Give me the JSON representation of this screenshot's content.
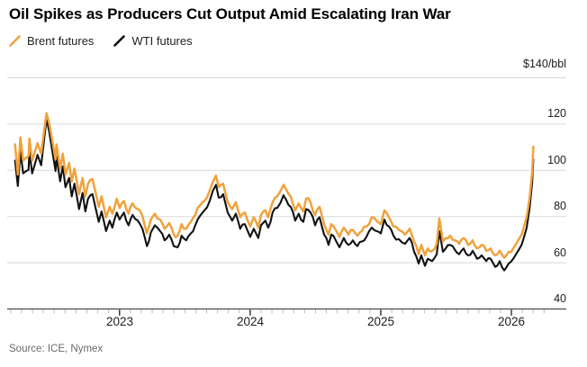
{
  "title": "Oil Spikes as Producers Cut Output Amid Escalating Iran War",
  "source": "Source: ICE, Nymex",
  "colors": {
    "brent": "#F0A23C",
    "wti": "#111111",
    "gridline": "#D9D9D9",
    "axis_line": "#4A4A4A",
    "minor_tick": "#B8B8B8",
    "major_tick": "#1A1A1A",
    "text": "#1C1C1C",
    "source_text": "#696969"
  },
  "chart_data": {
    "type": "line",
    "title": "Oil Spikes as Producers Cut Output Amid Escalating Iran War",
    "xlabel": "",
    "ylabel": "$/bbl",
    "grid": "horizontal",
    "legend_position": "top-left",
    "y_axis": {
      "unit_label": "$140/bbl",
      "range": [
        40,
        140
      ],
      "ticks": [
        120,
        100,
        80,
        60,
        40
      ],
      "tick_labels": [
        "120",
        "100",
        "80",
        "60",
        "40"
      ],
      "gridlines": [
        140,
        120,
        100,
        80,
        60,
        40
      ]
    },
    "x_axis": {
      "range": [
        2022.14,
        2026.42
      ],
      "tick_years": [
        2023,
        2024,
        2025,
        2026
      ],
      "tick_labels": [
        "2023",
        "2024",
        "2025",
        "2026"
      ],
      "minor_ticks_per_year": 12
    },
    "series": [
      {
        "name": "Brent futures",
        "color": "#F0A23C",
        "width": 2.5,
        "points": [
          [
            2022.2,
            111
          ],
          [
            2022.221,
            98
          ],
          [
            2022.241,
            114
          ],
          [
            2022.262,
            104
          ],
          [
            2022.303,
            106
          ],
          [
            2022.31,
            113.5
          ],
          [
            2022.331,
            104
          ],
          [
            2022.345,
            106.5
          ],
          [
            2022.372,
            111.5
          ],
          [
            2022.4,
            107
          ],
          [
            2022.441,
            124.5
          ],
          [
            2022.462,
            120
          ],
          [
            2022.51,
            104.5
          ],
          [
            2022.517,
            111
          ],
          [
            2022.545,
            100.5
          ],
          [
            2022.566,
            107
          ],
          [
            2022.586,
            98
          ],
          [
            2022.614,
            103
          ],
          [
            2022.634,
            95
          ],
          [
            2022.655,
            100.5
          ],
          [
            2022.69,
            89.5
          ],
          [
            2022.717,
            96.5
          ],
          [
            2022.738,
            88.5
          ],
          [
            2022.759,
            94
          ],
          [
            2022.793,
            96
          ],
          [
            2022.841,
            84
          ],
          [
            2022.862,
            88.5
          ],
          [
            2022.897,
            79.5
          ],
          [
            2022.924,
            84
          ],
          [
            2022.945,
            81
          ],
          [
            2022.979,
            87.5
          ],
          [
            2023.0,
            83.5
          ],
          [
            2023.034,
            86.5
          ],
          [
            2023.069,
            81
          ],
          [
            2023.1,
            85.5
          ],
          [
            2023.14,
            83
          ],
          [
            2023.175,
            80
          ],
          [
            2023.21,
            72.5
          ],
          [
            2023.24,
            78.5
          ],
          [
            2023.27,
            81
          ],
          [
            2023.31,
            78.5
          ],
          [
            2023.345,
            74.5
          ],
          [
            2023.38,
            77
          ],
          [
            2023.415,
            72
          ],
          [
            2023.445,
            71.5
          ],
          [
            2023.475,
            76.5
          ],
          [
            2023.51,
            74.5
          ],
          [
            2023.545,
            77.5
          ],
          [
            2023.58,
            80.5
          ],
          [
            2023.615,
            84.5
          ],
          [
            2023.65,
            86.5
          ],
          [
            2023.69,
            91
          ],
          [
            2023.738,
            97.5
          ],
          [
            2023.759,
            92.5
          ],
          [
            2023.793,
            94
          ],
          [
            2023.828,
            86
          ],
          [
            2023.862,
            83
          ],
          [
            2023.89,
            86
          ],
          [
            2023.924,
            79.5
          ],
          [
            2023.959,
            81.5
          ],
          [
            2024.0,
            75.5
          ],
          [
            2024.028,
            79.5
          ],
          [
            2024.062,
            75
          ],
          [
            2024.083,
            80.5
          ],
          [
            2024.117,
            82.5
          ],
          [
            2024.138,
            79.5
          ],
          [
            2024.172,
            86
          ],
          [
            2024.207,
            88.5
          ],
          [
            2024.255,
            93.5
          ],
          [
            2024.276,
            91.5
          ],
          [
            2024.31,
            88.5
          ],
          [
            2024.345,
            82.5
          ],
          [
            2024.372,
            85.5
          ],
          [
            2024.407,
            82
          ],
          [
            2024.428,
            87.5
          ],
          [
            2024.462,
            86
          ],
          [
            2024.497,
            80.5
          ],
          [
            2024.531,
            84
          ],
          [
            2024.566,
            76.5
          ],
          [
            2024.6,
            72
          ],
          [
            2024.621,
            76.5
          ],
          [
            2024.655,
            74
          ],
          [
            2024.683,
            71
          ],
          [
            2024.717,
            75
          ],
          [
            2024.752,
            72
          ],
          [
            2024.786,
            74
          ],
          [
            2024.821,
            71.5
          ],
          [
            2024.855,
            73.5
          ],
          [
            2024.89,
            75.5
          ],
          [
            2024.931,
            79.5
          ],
          [
            2024.966,
            78
          ],
          [
            2025.0,
            76.5
          ],
          [
            2025.028,
            82.5
          ],
          [
            2025.062,
            79.5
          ],
          [
            2025.097,
            75.5
          ],
          [
            2025.138,
            74
          ],
          [
            2025.186,
            72
          ],
          [
            2025.221,
            74.5
          ],
          [
            2025.255,
            69
          ],
          [
            2025.29,
            63.5
          ],
          [
            2025.31,
            67.5
          ],
          [
            2025.338,
            63
          ],
          [
            2025.359,
            66
          ],
          [
            2025.393,
            65
          ],
          [
            2025.428,
            68
          ],
          [
            2025.448,
            79
          ],
          [
            2025.476,
            69
          ],
          [
            2025.497,
            70.5
          ],
          [
            2025.531,
            71.5
          ],
          [
            2025.566,
            69.5
          ],
          [
            2025.6,
            68
          ],
          [
            2025.634,
            70.5
          ],
          [
            2025.669,
            67.5
          ],
          [
            2025.703,
            69.5
          ],
          [
            2025.738,
            66
          ],
          [
            2025.772,
            67.5
          ],
          [
            2025.807,
            65
          ],
          [
            2025.841,
            66
          ],
          [
            2025.876,
            63
          ],
          [
            2025.91,
            65
          ],
          [
            2025.945,
            62
          ],
          [
            2025.979,
            64.5
          ],
          [
            2026.014,
            66
          ],
          [
            2026.041,
            68.5
          ],
          [
            2026.062,
            70.5
          ],
          [
            2026.097,
            75.5
          ],
          [
            2026.117,
            79.5
          ],
          [
            2026.138,
            87.5
          ],
          [
            2026.159,
            99
          ],
          [
            2026.168,
            110
          ]
        ]
      },
      {
        "name": "WTI futures",
        "color": "#111111",
        "width": 2.1,
        "points": [
          [
            2022.2,
            104
          ],
          [
            2022.221,
            93
          ],
          [
            2022.241,
            108
          ],
          [
            2022.262,
            98.5
          ],
          [
            2022.303,
            100
          ],
          [
            2022.31,
            108
          ],
          [
            2022.331,
            98.5
          ],
          [
            2022.345,
            101
          ],
          [
            2022.372,
            106.5
          ],
          [
            2022.4,
            102
          ],
          [
            2022.441,
            122
          ],
          [
            2022.462,
            116.5
          ],
          [
            2022.51,
            99.5
          ],
          [
            2022.517,
            106
          ],
          [
            2022.545,
            95
          ],
          [
            2022.566,
            101.5
          ],
          [
            2022.586,
            92.5
          ],
          [
            2022.614,
            96.5
          ],
          [
            2022.634,
            88.5
          ],
          [
            2022.655,
            94
          ],
          [
            2022.69,
            83
          ],
          [
            2022.717,
            90
          ],
          [
            2022.738,
            82
          ],
          [
            2022.759,
            87.5
          ],
          [
            2022.793,
            89.5
          ],
          [
            2022.841,
            77.5
          ],
          [
            2022.862,
            82
          ],
          [
            2022.897,
            73.5
          ],
          [
            2022.924,
            78
          ],
          [
            2022.945,
            75
          ],
          [
            2022.979,
            81.5
          ],
          [
            2023.0,
            78.5
          ],
          [
            2023.034,
            81.5
          ],
          [
            2023.069,
            76
          ],
          [
            2023.1,
            80.5
          ],
          [
            2023.14,
            78
          ],
          [
            2023.175,
            74.5
          ],
          [
            2023.21,
            67
          ],
          [
            2023.24,
            73
          ],
          [
            2023.27,
            76
          ],
          [
            2023.31,
            73.5
          ],
          [
            2023.345,
            69.5
          ],
          [
            2023.38,
            72
          ],
          [
            2023.415,
            67
          ],
          [
            2023.445,
            66.5
          ],
          [
            2023.475,
            71.5
          ],
          [
            2023.51,
            69.5
          ],
          [
            2023.545,
            72.5
          ],
          [
            2023.58,
            76
          ],
          [
            2023.615,
            80
          ],
          [
            2023.65,
            82.5
          ],
          [
            2023.69,
            86.5
          ],
          [
            2023.738,
            93.5
          ],
          [
            2023.759,
            88
          ],
          [
            2023.793,
            89.5
          ],
          [
            2023.828,
            81.5
          ],
          [
            2023.862,
            78
          ],
          [
            2023.89,
            81
          ],
          [
            2023.924,
            74.5
          ],
          [
            2023.959,
            76.5
          ],
          [
            2024.0,
            71
          ],
          [
            2024.028,
            74.5
          ],
          [
            2024.062,
            70.5
          ],
          [
            2024.083,
            76
          ],
          [
            2024.117,
            78
          ],
          [
            2024.138,
            75
          ],
          [
            2024.172,
            81.5
          ],
          [
            2024.207,
            83.5
          ],
          [
            2024.255,
            89
          ],
          [
            2024.276,
            87
          ],
          [
            2024.31,
            84
          ],
          [
            2024.345,
            78
          ],
          [
            2024.372,
            81
          ],
          [
            2024.407,
            77.5
          ],
          [
            2024.428,
            83
          ],
          [
            2024.462,
            81.5
          ],
          [
            2024.497,
            76
          ],
          [
            2024.531,
            79.5
          ],
          [
            2024.566,
            72
          ],
          [
            2024.6,
            67.5
          ],
          [
            2024.621,
            72
          ],
          [
            2024.655,
            69.5
          ],
          [
            2024.683,
            66.5
          ],
          [
            2024.717,
            70.5
          ],
          [
            2024.752,
            67.5
          ],
          [
            2024.786,
            69.5
          ],
          [
            2024.821,
            67
          ],
          [
            2024.855,
            69
          ],
          [
            2024.89,
            71
          ],
          [
            2024.931,
            75
          ],
          [
            2024.966,
            73.5
          ],
          [
            2025.0,
            72.5
          ],
          [
            2025.028,
            78.5
          ],
          [
            2025.062,
            75.5
          ],
          [
            2025.097,
            71.5
          ],
          [
            2025.138,
            70
          ],
          [
            2025.186,
            68
          ],
          [
            2025.221,
            70.5
          ],
          [
            2025.255,
            64.5
          ],
          [
            2025.29,
            59.5
          ],
          [
            2025.31,
            63
          ],
          [
            2025.338,
            58.5
          ],
          [
            2025.359,
            61.5
          ],
          [
            2025.393,
            60.5
          ],
          [
            2025.428,
            63.5
          ],
          [
            2025.448,
            73.5
          ],
          [
            2025.476,
            64.5
          ],
          [
            2025.497,
            66
          ],
          [
            2025.531,
            67.5
          ],
          [
            2025.566,
            65.5
          ],
          [
            2025.6,
            63.5
          ],
          [
            2025.634,
            66
          ],
          [
            2025.669,
            63
          ],
          [
            2025.703,
            65
          ],
          [
            2025.738,
            61.5
          ],
          [
            2025.772,
            63
          ],
          [
            2025.807,
            60.5
          ],
          [
            2025.841,
            61.5
          ],
          [
            2025.876,
            58
          ],
          [
            2025.91,
            60.5
          ],
          [
            2025.945,
            56.5
          ],
          [
            2025.979,
            59.5
          ],
          [
            2026.014,
            61.5
          ],
          [
            2026.041,
            64
          ],
          [
            2026.062,
            66
          ],
          [
            2026.097,
            71
          ],
          [
            2026.117,
            75
          ],
          [
            2026.138,
            83
          ],
          [
            2026.159,
            94.5
          ],
          [
            2026.168,
            104.5
          ]
        ]
      }
    ]
  }
}
